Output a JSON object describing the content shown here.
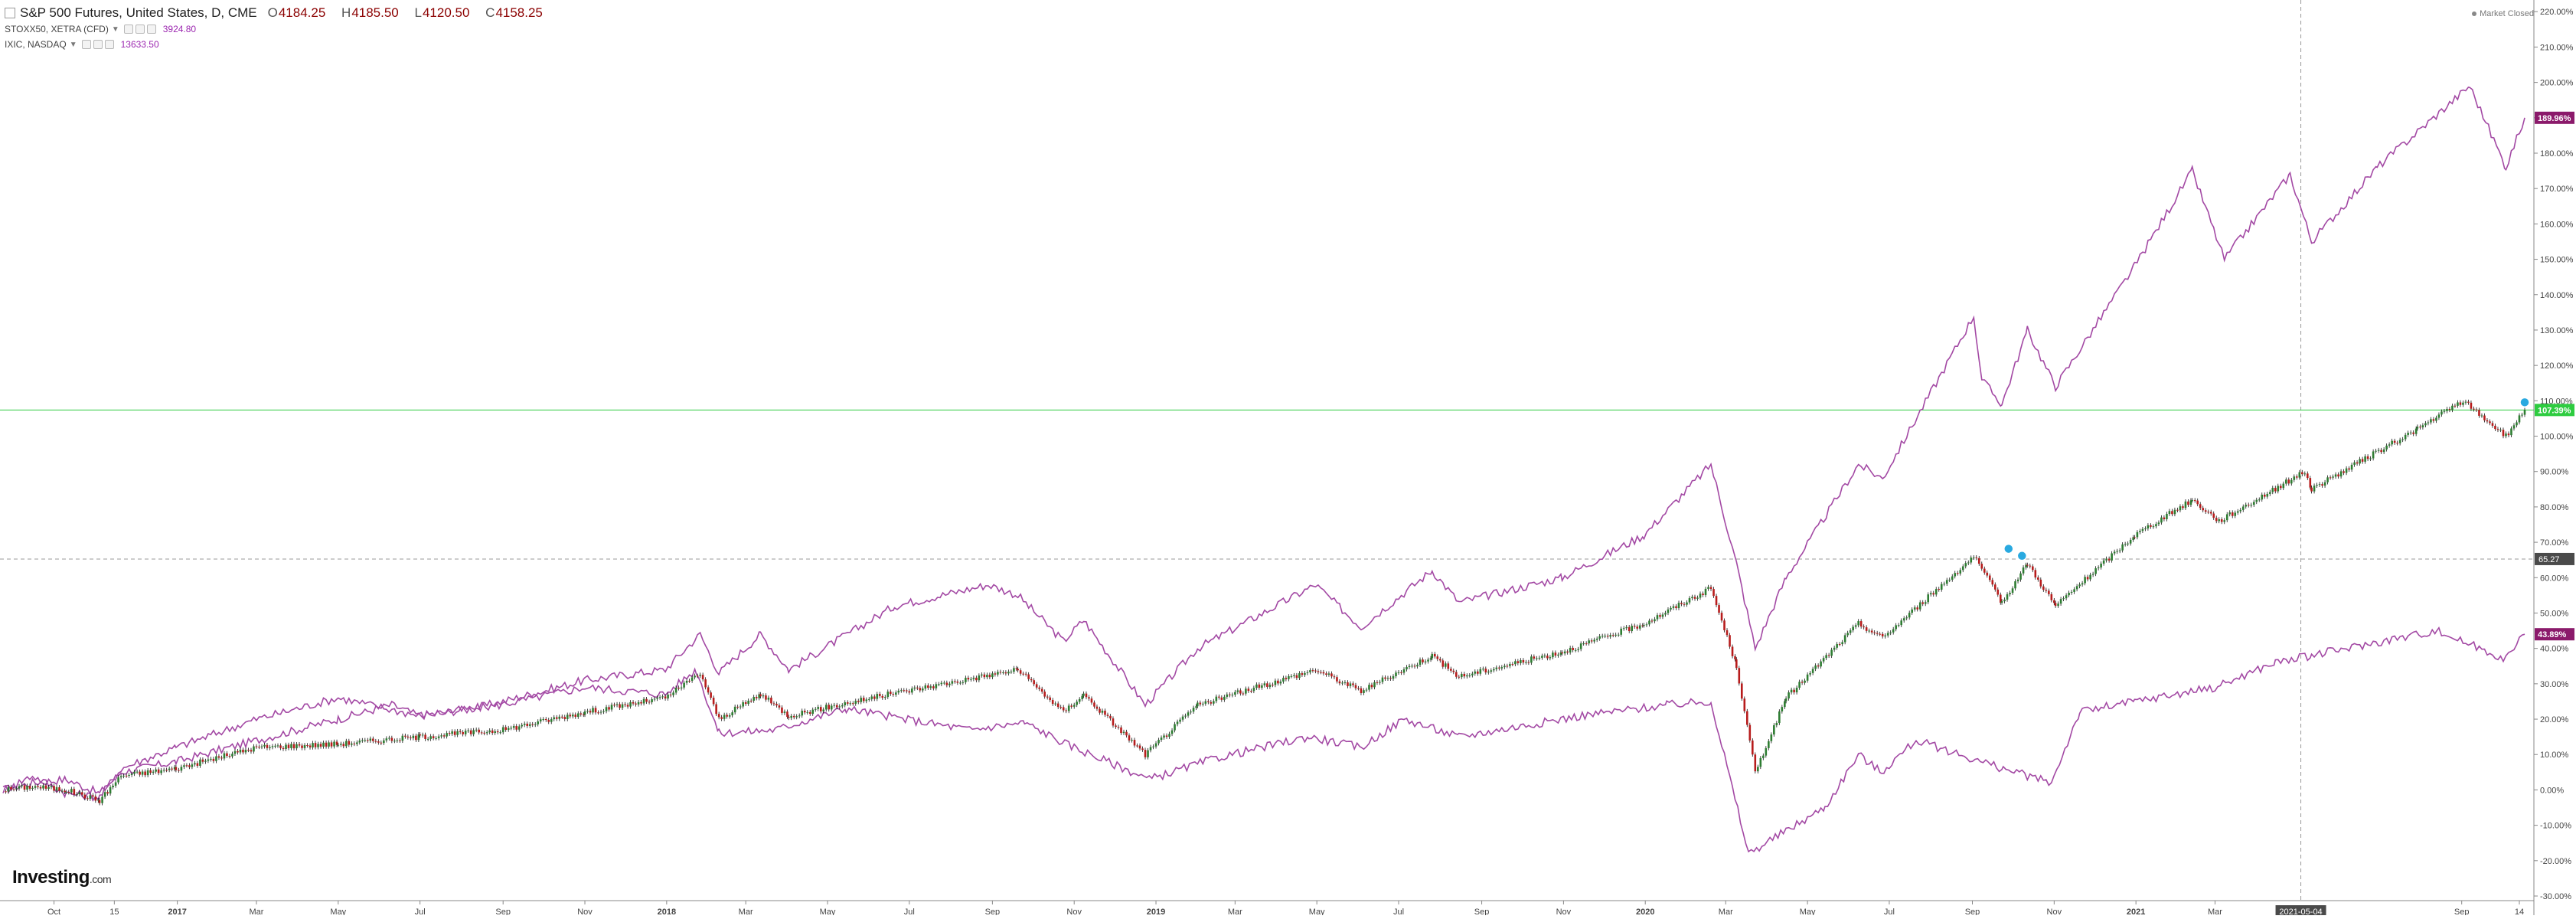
{
  "legend": {
    "main_label": "S&P 500 Futures, United States, D, CME",
    "ohlc": [
      {
        "k": "O",
        "v": "4184.25"
      },
      {
        "k": "H",
        "v": "4185.50"
      },
      {
        "k": "L",
        "v": "4120.50"
      },
      {
        "k": "C",
        "v": "4158.25"
      }
    ],
    "compare": [
      {
        "label": "STOXX50, XETRA (CFD)",
        "value": "3924.80"
      },
      {
        "label": "IXIC, NASDAQ",
        "value": "13633.50"
      }
    ]
  },
  "status": {
    "market": "Market Closed"
  },
  "branding": {
    "name": "Investing",
    "suffix": ".com"
  },
  "colors": {
    "compare": "#a349a4",
    "up": "#2e7d32",
    "down": "#b71c1c",
    "price_line": "#2ecc40",
    "axis_text": "#444444",
    "crosshair": "#999999"
  },
  "chart_data": {
    "type": "line",
    "y_unit": "%",
    "ylim": [
      -30,
      222
    ],
    "y_ticks": [
      -30,
      -20,
      -10,
      0,
      10,
      20,
      30,
      40,
      50,
      60,
      70,
      80,
      90,
      100,
      110,
      120,
      130,
      140,
      150,
      160,
      170,
      180,
      190,
      200,
      210,
      220
    ],
    "y_tick_labels": [
      "-30.00%",
      "-20.00%",
      "-10.00%",
      "0.00%",
      "10.00%",
      "20.00%",
      "30.00%",
      "40.00%",
      "50.00%",
      "60.00%",
      "70.00%",
      "80.00%",
      "90.00%",
      "100.00%",
      "110.00%",
      "120.00%",
      "130.00%",
      "140.00%",
      "150.00%",
      "160.00%",
      "170.00%",
      "180.00%",
      "190.00%",
      "200.00%",
      "210.00%",
      "220.00%"
    ],
    "xlim": [
      "2016-08-24",
      "2021-10-18"
    ],
    "x_ticks": [
      {
        "date": "2016-10-01",
        "label": "Oct"
      },
      {
        "date": "2016-11-15",
        "label": "15"
      },
      {
        "date": "2017-01-01",
        "label": "2017"
      },
      {
        "date": "2017-03-01",
        "label": "Mar"
      },
      {
        "date": "2017-05-01",
        "label": "May"
      },
      {
        "date": "2017-07-01",
        "label": "Jul"
      },
      {
        "date": "2017-09-01",
        "label": "Sep"
      },
      {
        "date": "2017-11-01",
        "label": "Nov"
      },
      {
        "date": "2018-01-01",
        "label": "2018"
      },
      {
        "date": "2018-03-01",
        "label": "Mar"
      },
      {
        "date": "2018-05-01",
        "label": "May"
      },
      {
        "date": "2018-07-01",
        "label": "Jul"
      },
      {
        "date": "2018-09-01",
        "label": "Sep"
      },
      {
        "date": "2018-11-01",
        "label": "Nov"
      },
      {
        "date": "2019-01-01",
        "label": "2019"
      },
      {
        "date": "2019-03-01",
        "label": "Mar"
      },
      {
        "date": "2019-05-01",
        "label": "May"
      },
      {
        "date": "2019-07-01",
        "label": "Jul"
      },
      {
        "date": "2019-09-01",
        "label": "Sep"
      },
      {
        "date": "2019-11-01",
        "label": "Nov"
      },
      {
        "date": "2020-01-01",
        "label": "2020"
      },
      {
        "date": "2020-03-01",
        "label": "Mar"
      },
      {
        "date": "2020-05-01",
        "label": "May"
      },
      {
        "date": "2020-07-01",
        "label": "Jul"
      },
      {
        "date": "2020-09-01",
        "label": "Sep"
      },
      {
        "date": "2020-11-01",
        "label": "Nov"
      },
      {
        "date": "2021-01-01",
        "label": "2021"
      },
      {
        "date": "2021-03-01",
        "label": "Mar"
      },
      {
        "date": "2021-09-01",
        "label": "Sep"
      },
      {
        "date": "2021-10-14",
        "label": "14"
      }
    ],
    "crosshair": {
      "date": "2021-05-04",
      "label": "2021-05-04",
      "y": 65.27,
      "y_label": "65.27"
    },
    "price_line": {
      "y": 107.39,
      "label": "107.39%"
    },
    "series": [
      {
        "name": "IXIC, NASDAQ",
        "style": "line",
        "end_label": "189.96%",
        "points": [
          [
            "2016-08-24",
            0
          ],
          [
            "2016-09-15",
            2
          ],
          [
            "2016-10-10",
            3
          ],
          [
            "2016-11-04",
            -1
          ],
          [
            "2016-11-20",
            5
          ],
          [
            "2016-12-31",
            8
          ],
          [
            "2017-03-01",
            14
          ],
          [
            "2017-05-01",
            20
          ],
          [
            "2017-06-10",
            24
          ],
          [
            "2017-06-30",
            21
          ],
          [
            "2017-08-10",
            23
          ],
          [
            "2017-09-01",
            25
          ],
          [
            "2017-11-01",
            31
          ],
          [
            "2017-12-31",
            34
          ],
          [
            "2018-01-26",
            44
          ],
          [
            "2018-02-09",
            33
          ],
          [
            "2018-03-12",
            44
          ],
          [
            "2018-04-02",
            34
          ],
          [
            "2018-06-20",
            52
          ],
          [
            "2018-08-29",
            58
          ],
          [
            "2018-09-20",
            55
          ],
          [
            "2018-10-24",
            42
          ],
          [
            "2018-11-08",
            48
          ],
          [
            "2018-12-24",
            24
          ],
          [
            "2019-02-01",
            40
          ],
          [
            "2019-04-30",
            58
          ],
          [
            "2019-06-03",
            46
          ],
          [
            "2019-07-26",
            62
          ],
          [
            "2019-08-15",
            53
          ],
          [
            "2019-10-31",
            60
          ],
          [
            "2019-12-31",
            72
          ],
          [
            "2020-02-19",
            92
          ],
          [
            "2020-03-09",
            64
          ],
          [
            "2020-03-23",
            40
          ],
          [
            "2020-04-15",
            60
          ],
          [
            "2020-06-08",
            92
          ],
          [
            "2020-06-26",
            88
          ],
          [
            "2020-09-02",
            134
          ],
          [
            "2020-09-08",
            116
          ],
          [
            "2020-09-23",
            109
          ],
          [
            "2020-10-12",
            130
          ],
          [
            "2020-11-02",
            114
          ],
          [
            "2020-12-31",
            148
          ],
          [
            "2021-02-12",
            175
          ],
          [
            "2021-03-08",
            150
          ],
          [
            "2021-04-26",
            174
          ],
          [
            "2021-05-12",
            155
          ],
          [
            "2021-06-30",
            176
          ],
          [
            "2021-09-07",
            199
          ],
          [
            "2021-10-04",
            176
          ],
          [
            "2021-10-18",
            190
          ]
        ]
      },
      {
        "name": "STOXX50, XETRA (CFD)",
        "style": "line",
        "end_label": "43.89%",
        "points": [
          [
            "2016-08-24",
            0
          ],
          [
            "2016-09-15",
            4
          ],
          [
            "2016-10-10",
            -1
          ],
          [
            "2016-11-04",
            -2
          ],
          [
            "2016-11-20",
            6
          ],
          [
            "2016-12-31",
            12
          ],
          [
            "2017-03-01",
            20
          ],
          [
            "2017-05-01",
            26
          ],
          [
            "2017-06-30",
            21
          ],
          [
            "2017-08-29",
            24
          ],
          [
            "2017-11-01",
            29
          ],
          [
            "2017-12-31",
            27
          ],
          [
            "2018-01-23",
            34
          ],
          [
            "2018-02-09",
            16
          ],
          [
            "2018-03-23",
            17
          ],
          [
            "2018-05-15",
            23
          ],
          [
            "2018-06-28",
            20
          ],
          [
            "2018-08-15",
            17
          ],
          [
            "2018-09-25",
            19
          ],
          [
            "2018-10-26",
            13
          ],
          [
            "2018-12-27",
            3
          ],
          [
            "2019-02-15",
            9
          ],
          [
            "2019-04-25",
            15
          ],
          [
            "2019-06-03",
            12
          ],
          [
            "2019-07-05",
            20
          ],
          [
            "2019-08-15",
            15
          ],
          [
            "2019-11-15",
            21
          ],
          [
            "2020-01-17",
            24
          ],
          [
            "2020-02-19",
            25
          ],
          [
            "2020-03-18",
            -18
          ],
          [
            "2020-05-14",
            -5
          ],
          [
            "2020-06-08",
            10
          ],
          [
            "2020-06-25",
            5
          ],
          [
            "2020-07-21",
            14
          ],
          [
            "2020-09-24",
            6
          ],
          [
            "2020-10-30",
            2
          ],
          [
            "2020-11-20",
            22
          ],
          [
            "2020-12-31",
            25
          ],
          [
            "2021-03-01",
            29
          ],
          [
            "2021-04-15",
            36
          ],
          [
            "2021-05-12",
            38
          ],
          [
            "2021-08-13",
            45
          ],
          [
            "2021-10-04",
            37
          ],
          [
            "2021-10-18",
            44
          ]
        ]
      },
      {
        "name": "S&P 500 Futures, United States, D, CME",
        "style": "candles",
        "end_label": "107.39%",
        "points": [
          [
            "2016-08-24",
            0
          ],
          [
            "2016-09-15",
            1
          ],
          [
            "2016-10-10",
            0
          ],
          [
            "2016-11-04",
            -3
          ],
          [
            "2016-11-20",
            4
          ],
          [
            "2016-12-31",
            6
          ],
          [
            "2017-03-01",
            12
          ],
          [
            "2017-05-01",
            13
          ],
          [
            "2017-07-01",
            15
          ],
          [
            "2017-09-01",
            17
          ],
          [
            "2017-11-01",
            22
          ],
          [
            "2017-12-31",
            26
          ],
          [
            "2018-01-26",
            33
          ],
          [
            "2018-02-09",
            20
          ],
          [
            "2018-03-12",
            27
          ],
          [
            "2018-04-02",
            21
          ],
          [
            "2018-06-15",
            27
          ],
          [
            "2018-09-20",
            34
          ],
          [
            "2018-10-24",
            22
          ],
          [
            "2018-11-08",
            27
          ],
          [
            "2018-12-24",
            10
          ],
          [
            "2019-02-01",
            24
          ],
          [
            "2019-04-30",
            34
          ],
          [
            "2019-06-03",
            28
          ],
          [
            "2019-07-26",
            38
          ],
          [
            "2019-08-15",
            32
          ],
          [
            "2019-10-31",
            39
          ],
          [
            "2019-12-31",
            47
          ],
          [
            "2020-02-19",
            57
          ],
          [
            "2020-03-09",
            35
          ],
          [
            "2020-03-23",
            5
          ],
          [
            "2020-04-15",
            26
          ],
          [
            "2020-06-08",
            47
          ],
          [
            "2020-06-26",
            43
          ],
          [
            "2020-09-02",
            66
          ],
          [
            "2020-09-23",
            53
          ],
          [
            "2020-10-12",
            64
          ],
          [
            "2020-11-02",
            52
          ],
          [
            "2020-12-31",
            72
          ],
          [
            "2021-02-12",
            82
          ],
          [
            "2021-03-04",
            76
          ],
          [
            "2021-05-07",
            90
          ],
          [
            "2021-05-12",
            85
          ],
          [
            "2021-07-30",
            102
          ],
          [
            "2021-09-02",
            110
          ],
          [
            "2021-10-04",
            100
          ],
          [
            "2021-10-18",
            107.4
          ]
        ]
      }
    ]
  }
}
